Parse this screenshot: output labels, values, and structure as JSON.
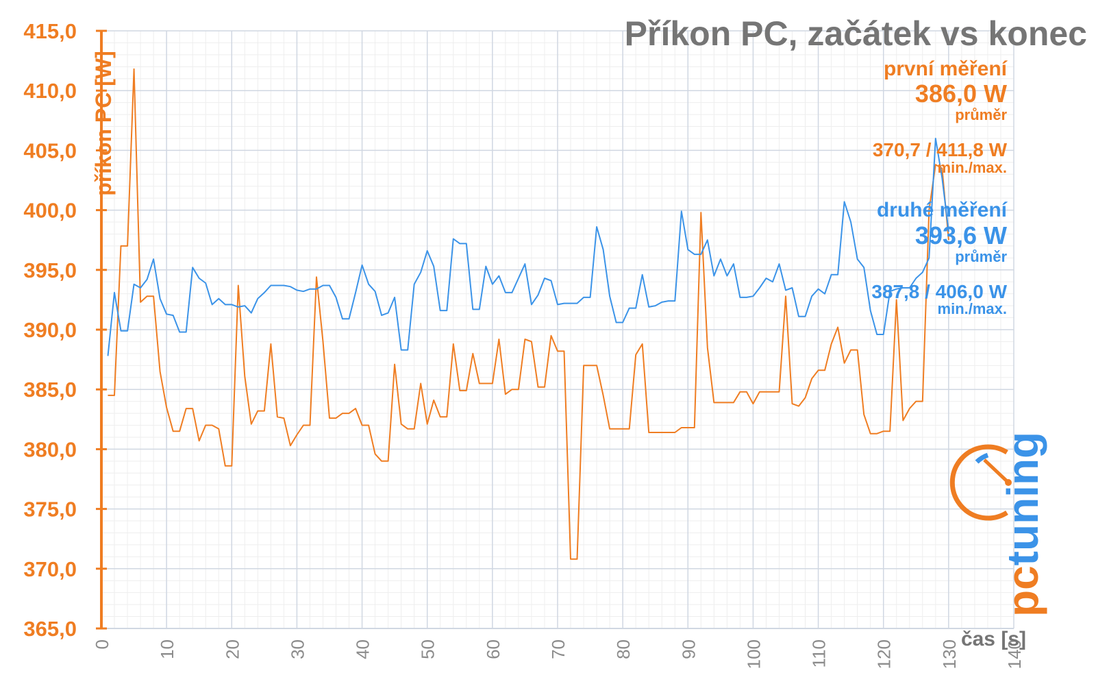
{
  "chart_data": {
    "type": "line",
    "title": "Příkon PC, začátek vs konec",
    "xlabel": "čas [s]",
    "ylabel": "příkon PC [W]",
    "xlim": [
      0,
      140
    ],
    "ylim": [
      365,
      415
    ],
    "x_ticks": [
      "0",
      "10",
      "20",
      "30",
      "40",
      "50",
      "60",
      "70",
      "80",
      "90",
      "100",
      "110",
      "120",
      "130",
      "140"
    ],
    "y_ticks": [
      "365,0",
      "370,0",
      "375,0",
      "380,0",
      "385,0",
      "390,0",
      "395,0",
      "400,0",
      "405,0",
      "410,0",
      "415,0"
    ],
    "grid": true,
    "series": [
      {
        "name": "první měření",
        "color": "#ef7d22",
        "x": [
          1,
          2,
          3,
          4,
          5,
          6,
          7,
          8,
          9,
          10,
          11,
          12,
          13,
          14,
          15,
          16,
          17,
          18,
          19,
          20,
          21,
          22,
          23,
          24,
          25,
          26,
          27,
          28,
          29,
          30,
          31,
          32,
          33,
          34,
          35,
          36,
          37,
          38,
          39,
          40,
          41,
          42,
          43,
          44,
          45,
          46,
          47,
          48,
          49,
          50,
          51,
          52,
          53,
          54,
          55,
          56,
          57,
          58,
          59,
          60,
          61,
          62,
          63,
          64,
          65,
          66,
          67,
          68,
          69,
          70,
          71,
          72,
          73,
          74,
          75,
          76,
          77,
          78,
          79,
          80,
          81,
          82,
          83,
          84,
          85,
          86,
          87,
          88,
          89,
          90,
          91,
          92,
          93,
          94,
          95,
          96,
          97,
          98,
          99,
          100,
          101,
          102,
          103,
          104,
          105,
          106,
          107,
          108,
          109,
          110,
          111,
          112,
          113,
          114,
          115,
          116,
          117,
          118,
          119,
          120,
          121,
          122,
          123,
          124,
          125,
          126,
          127,
          128,
          129,
          130
        ],
        "values": [
          384.5,
          384.5,
          397,
          397,
          411.8,
          392.3,
          392.8,
          392.8,
          386.5,
          383.5,
          381.5,
          381.5,
          383.4,
          383.4,
          380.7,
          382,
          382,
          381.7,
          378.6,
          378.6,
          393.7,
          386.1,
          382.1,
          383.2,
          383.2,
          388.8,
          382.7,
          382.6,
          380.3,
          381.2,
          382,
          382,
          394.4,
          389,
          382.6,
          382.6,
          383,
          383,
          383.4,
          382,
          382,
          379.6,
          379,
          379,
          387.1,
          382.1,
          381.7,
          381.7,
          385.5,
          382.1,
          384.1,
          382.7,
          382.7,
          388.8,
          384.9,
          384.9,
          388,
          385.5,
          385.5,
          385.5,
          389.2,
          384.6,
          385,
          385,
          389.2,
          389,
          385.2,
          385.2,
          389.5,
          388.2,
          388.2,
          370.8,
          370.8,
          387,
          387,
          387,
          384.5,
          381.7,
          381.7,
          381.7,
          381.7,
          387.9,
          388.8,
          381.4,
          381.4,
          381.4,
          381.4,
          381.4,
          381.8,
          381.8,
          381.8,
          399.8,
          388.5,
          383.9,
          383.9,
          383.9,
          383.9,
          384.8,
          384.8,
          383.8,
          384.8,
          384.8,
          384.8,
          384.8,
          392.8,
          383.8,
          383.6,
          384.3,
          385.9,
          386.6,
          386.6,
          388.8,
          390.2,
          387.2,
          388.3,
          388.3,
          382.9,
          381.3,
          381.3,
          381.5,
          381.5,
          392.5,
          382.4,
          383.4,
          384,
          384,
          400,
          403.8,
          403.5,
          397.5
        ],
        "average": "386,0 W",
        "minmax": "370,7 / 411,8 W"
      },
      {
        "name": "druhé měření",
        "color": "#3b93e8",
        "x": [
          1,
          2,
          3,
          4,
          5,
          6,
          7,
          8,
          9,
          10,
          11,
          12,
          13,
          14,
          15,
          16,
          17,
          18,
          19,
          20,
          21,
          22,
          23,
          24,
          25,
          26,
          27,
          28,
          29,
          30,
          31,
          32,
          33,
          34,
          35,
          36,
          37,
          38,
          39,
          40,
          41,
          42,
          43,
          44,
          45,
          46,
          47,
          48,
          49,
          50,
          51,
          52,
          53,
          54,
          55,
          56,
          57,
          58,
          59,
          60,
          61,
          62,
          63,
          64,
          65,
          66,
          67,
          68,
          69,
          70,
          71,
          72,
          73,
          74,
          75,
          76,
          77,
          78,
          79,
          80,
          81,
          82,
          83,
          84,
          85,
          86,
          87,
          88,
          89,
          90,
          91,
          92,
          93,
          94,
          95,
          96,
          97,
          98,
          99,
          100,
          101,
          102,
          103,
          104,
          105,
          106,
          107,
          108,
          109,
          110,
          111,
          112,
          113,
          114,
          115,
          116,
          117,
          118,
          119,
          120,
          121,
          122,
          123,
          124,
          125,
          126,
          127,
          128,
          129,
          130
        ],
        "values": [
          387.8,
          393.1,
          389.9,
          389.9,
          393.8,
          393.5,
          394.2,
          395.9,
          392.6,
          391.3,
          391.2,
          389.8,
          389.8,
          395.2,
          394.3,
          393.9,
          392.1,
          392.6,
          392.1,
          392.1,
          391.9,
          392,
          391.4,
          392.6,
          393.1,
          393.7,
          393.7,
          393.7,
          393.6,
          393.3,
          393.2,
          393.4,
          393.4,
          393.7,
          393.7,
          392.7,
          390.9,
          390.9,
          393.1,
          395.4,
          393.8,
          393.2,
          391.2,
          391.4,
          392.7,
          388.3,
          388.3,
          393.8,
          394.8,
          396.6,
          395.3,
          391.6,
          391.6,
          397.6,
          397.2,
          397.2,
          391.7,
          391.7,
          395.3,
          393.8,
          394.5,
          393.1,
          393.1,
          394.3,
          395.5,
          392.1,
          392.9,
          394.3,
          394.1,
          392.1,
          392.2,
          392.2,
          392.2,
          392.7,
          392.7,
          398.6,
          396.7,
          392.8,
          390.6,
          390.6,
          391.8,
          391.8,
          394.6,
          391.9,
          392,
          392.3,
          392.4,
          392.4,
          399.9,
          396.7,
          396.3,
          396.3,
          397.5,
          394.5,
          395.9,
          394.5,
          395.5,
          392.7,
          392.7,
          392.8,
          393.5,
          394.3,
          394,
          395.5,
          393.3,
          393.5,
          391.1,
          391.1,
          392.8,
          393.4,
          393,
          394.6,
          394.6,
          400.7,
          399,
          395.9,
          395.2,
          391.6,
          389.6,
          389.6,
          393.2,
          393.4,
          393.5,
          393.5,
          394.3,
          394.8,
          396,
          406,
          402.7,
          398.2
        ],
        "average": "393,6 W",
        "minmax": "387,8 / 406,0 W"
      }
    ]
  },
  "annotations": {
    "first_head": "první měření",
    "first_avg": "386,0 W",
    "first_avg_label": "průměr",
    "first_minmax": "370,7 / 411,8 W",
    "first_minmax_label": "min./max.",
    "second_head": "druhé měření",
    "second_avg": "393,6 W",
    "second_avg_label": "průměr",
    "second_minmax": "387,8 / 406,0 W",
    "second_minmax_label": "min./max."
  },
  "logo": {
    "text": "pctuning",
    "colors": {
      "pc": "#ef7d22",
      "tuning": "#3b93e8"
    }
  }
}
